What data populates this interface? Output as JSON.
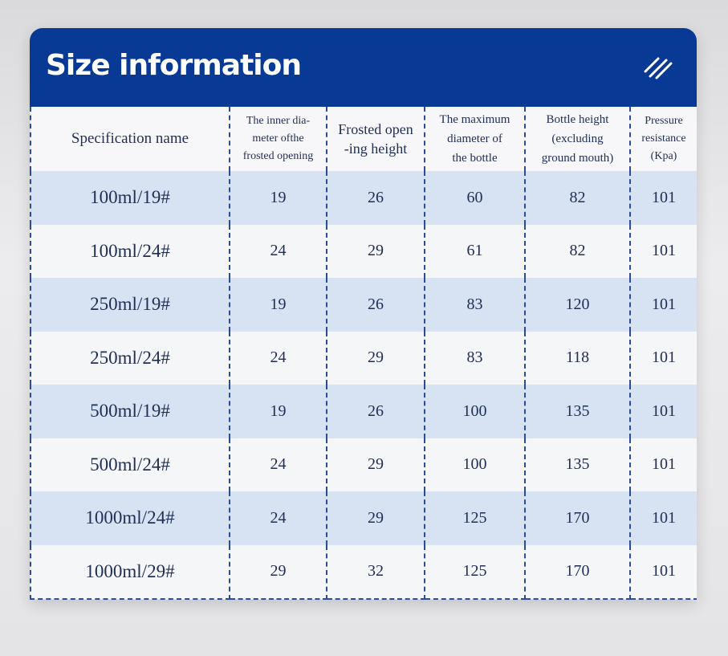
{
  "header": {
    "title": "Size information"
  },
  "table": {
    "columns": [
      [
        "Specification name"
      ],
      [
        "The inner dia-",
        "meter ofthe",
        "frosted opening"
      ],
      [
        "Frosted open",
        "-ing height"
      ],
      [
        "The maximum",
        "diameter of",
        "the bottle"
      ],
      [
        "Bottle height",
        "(excluding",
        "ground mouth)"
      ],
      [
        "Pressure",
        "resistance",
        "(Kpa)"
      ]
    ],
    "rows": [
      [
        "100ml/19#",
        19,
        26,
        60,
        82,
        101
      ],
      [
        "100ml/24#",
        24,
        29,
        61,
        82,
        101
      ],
      [
        "250ml/19#",
        19,
        26,
        83,
        120,
        101
      ],
      [
        "250ml/24#",
        24,
        29,
        83,
        118,
        101
      ],
      [
        "500ml/19#",
        19,
        26,
        100,
        135,
        101
      ],
      [
        "500ml/24#",
        24,
        29,
        100,
        135,
        101
      ],
      [
        "1000ml/24#",
        24,
        29,
        125,
        170,
        101
      ],
      [
        "1000ml/29#",
        29,
        32,
        125,
        170,
        101
      ]
    ]
  }
}
